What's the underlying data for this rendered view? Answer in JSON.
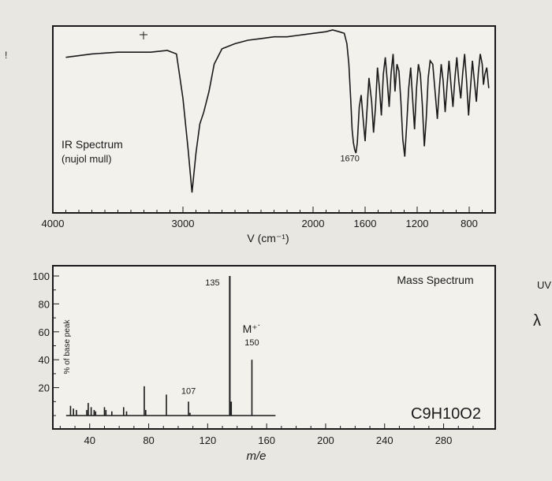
{
  "chart_data": [
    {
      "type": "line",
      "title": "IR Spectrum",
      "subtitle": "(nujol mull)",
      "xlabel": "V (cm⁻¹)",
      "ylabel": "",
      "xlim": [
        4000,
        600
      ],
      "ylim": [
        0,
        100
      ],
      "x_ticks": [
        4000,
        3000,
        2000,
        1600,
        1200,
        800
      ],
      "annotations": [
        {
          "text": "1670",
          "x": 1670,
          "y": 26
        }
      ],
      "series": [
        {
          "values": [
            [
              3900,
              84
            ],
            [
              3700,
              86
            ],
            [
              3500,
              87
            ],
            [
              3250,
              87
            ],
            [
              3120,
              88
            ],
            [
              3050,
              86
            ],
            [
              3000,
              60
            ],
            [
              2960,
              30
            ],
            [
              2930,
              5
            ],
            [
              2900,
              28
            ],
            [
              2870,
              45
            ],
            [
              2840,
              52
            ],
            [
              2800,
              64
            ],
            [
              2760,
              80
            ],
            [
              2700,
              89
            ],
            [
              2600,
              92
            ],
            [
              2500,
              94
            ],
            [
              2400,
              95
            ],
            [
              2300,
              96
            ],
            [
              2200,
              96
            ],
            [
              2100,
              97
            ],
            [
              2000,
              98
            ],
            [
              1900,
              99
            ],
            [
              1850,
              100
            ],
            [
              1800,
              99
            ],
            [
              1760,
              98
            ],
            [
              1740,
              92
            ],
            [
              1725,
              80
            ],
            [
              1710,
              58
            ],
            [
              1700,
              42
            ],
            [
              1690,
              34
            ],
            [
              1680,
              30
            ],
            [
              1670,
              28
            ],
            [
              1660,
              34
            ],
            [
              1645,
              55
            ],
            [
              1630,
              62
            ],
            [
              1615,
              48
            ],
            [
              1600,
              35
            ],
            [
              1590,
              48
            ],
            [
              1570,
              72
            ],
            [
              1550,
              58
            ],
            [
              1535,
              40
            ],
            [
              1520,
              55
            ],
            [
              1505,
              78
            ],
            [
              1490,
              66
            ],
            [
              1475,
              50
            ],
            [
              1460,
              74
            ],
            [
              1445,
              84
            ],
            [
              1430,
              70
            ],
            [
              1415,
              55
            ],
            [
              1400,
              75
            ],
            [
              1385,
              86
            ],
            [
              1370,
              64
            ],
            [
              1355,
              80
            ],
            [
              1340,
              76
            ],
            [
              1325,
              58
            ],
            [
              1310,
              36
            ],
            [
              1295,
              26
            ],
            [
              1280,
              45
            ],
            [
              1265,
              66
            ],
            [
              1250,
              78
            ],
            [
              1235,
              60
            ],
            [
              1220,
              42
            ],
            [
              1205,
              66
            ],
            [
              1190,
              80
            ],
            [
              1175,
              74
            ],
            [
              1160,
              56
            ],
            [
              1145,
              32
            ],
            [
              1130,
              48
            ],
            [
              1115,
              72
            ],
            [
              1100,
              82
            ],
            [
              1080,
              80
            ],
            [
              1060,
              62
            ],
            [
              1045,
              48
            ],
            [
              1030,
              65
            ],
            [
              1015,
              80
            ],
            [
              1000,
              70
            ],
            [
              985,
              52
            ],
            [
              970,
              68
            ],
            [
              955,
              82
            ],
            [
              940,
              68
            ],
            [
              925,
              55
            ],
            [
              910,
              72
            ],
            [
              895,
              84
            ],
            [
              880,
              70
            ],
            [
              865,
              60
            ],
            [
              850,
              75
            ],
            [
              835,
              86
            ],
            [
              820,
              70
            ],
            [
              805,
              50
            ],
            [
              790,
              66
            ],
            [
              775,
              82
            ],
            [
              760,
              70
            ],
            [
              745,
              58
            ],
            [
              730,
              75
            ],
            [
              715,
              86
            ],
            [
              700,
              80
            ],
            [
              690,
              68
            ],
            [
              680,
              74
            ],
            [
              665,
              78
            ],
            [
              650,
              66
            ]
          ]
        }
      ]
    },
    {
      "type": "bar",
      "title": "Mass Spectrum",
      "xlabel": "m/e",
      "ylabel": "% of base peak",
      "xlim": [
        15,
        315
      ],
      "ylim": [
        0,
        100
      ],
      "x_ticks": [
        40,
        80,
        120,
        160,
        200,
        240,
        280
      ],
      "y_ticks": [
        20,
        40,
        60,
        80,
        100
      ],
      "formula": "C9H10O2",
      "peaks": [
        {
          "x": 27,
          "y": 7
        },
        {
          "x": 29,
          "y": 5
        },
        {
          "x": 31,
          "y": 4
        },
        {
          "x": 38,
          "y": 4
        },
        {
          "x": 39,
          "y": 9
        },
        {
          "x": 41,
          "y": 6
        },
        {
          "x": 43,
          "y": 4
        },
        {
          "x": 44,
          "y": 3
        },
        {
          "x": 50,
          "y": 6
        },
        {
          "x": 51,
          "y": 4
        },
        {
          "x": 55,
          "y": 3
        },
        {
          "x": 63,
          "y": 6
        },
        {
          "x": 65,
          "y": 3
        },
        {
          "x": 77,
          "y": 21
        },
        {
          "x": 78,
          "y": 4
        },
        {
          "x": 92,
          "y": 15
        },
        {
          "x": 107,
          "y": 10
        },
        {
          "x": 108,
          "y": 2
        },
        {
          "x": 135,
          "y": 100
        },
        {
          "x": 136,
          "y": 10
        },
        {
          "x": 150,
          "y": 40
        }
      ],
      "peak_labels": [
        {
          "text": "135",
          "x": 135,
          "y": 100
        },
        {
          "text": "107",
          "x": 107,
          "y": 10
        },
        {
          "text": "M⁺˙",
          "x": 150,
          "y": 40
        },
        {
          "text": "150",
          "x": 150,
          "y": 40
        }
      ]
    }
  ],
  "cropped_text": {
    "uv": "UV",
    "lambda": "λ"
  }
}
